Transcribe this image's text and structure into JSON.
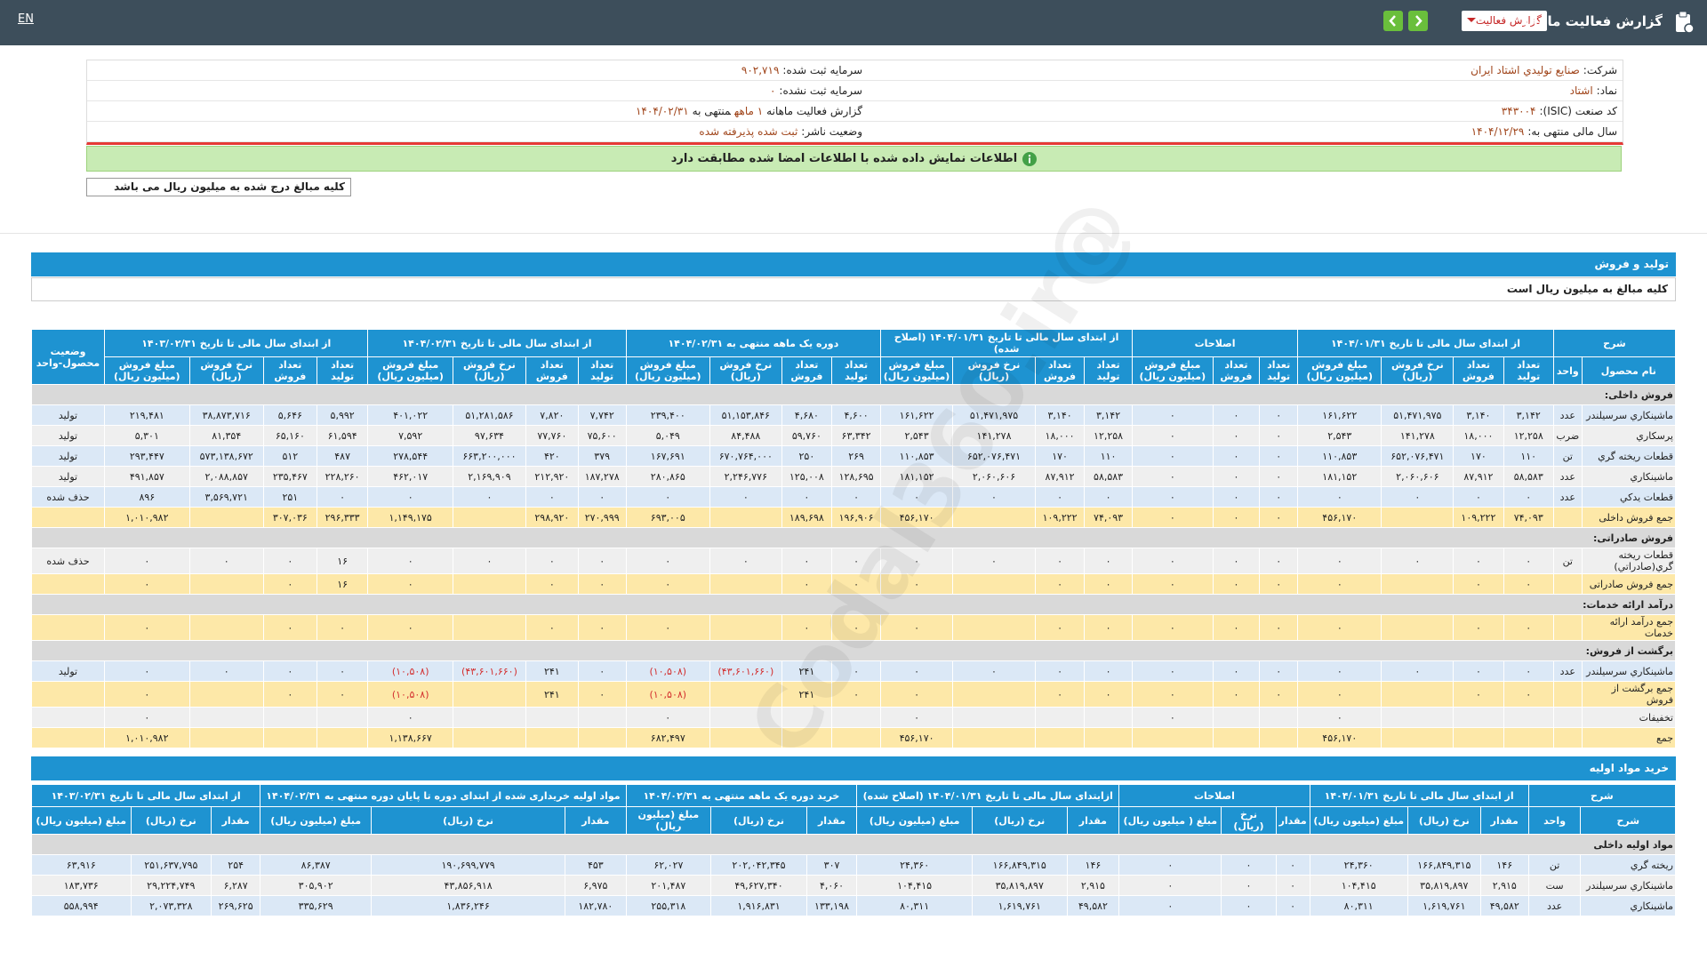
{
  "topbar": {
    "lang": "EN",
    "title": "گزارش فعالیت ماهانه",
    "report_type": "گزارش فعالیت"
  },
  "info": {
    "right": [
      {
        "label": "شرکت:",
        "value": "صنايع توليدي اشتاد ايران"
      },
      {
        "label": "نماد:",
        "value": "اشتاد"
      },
      {
        "label": "کد صنعت (ISIC):",
        "value": "۳۴۳۰۰۴"
      },
      {
        "label": "سال مالی منتهی به:",
        "value": "۱۴۰۴/۱۲/۲۹"
      }
    ],
    "left": [
      {
        "label": "سرمایه ثبت شده:",
        "value": "۹۰۲,۷۱۹"
      },
      {
        "label": "سرمایه ثبت نشده:",
        "value": "۰"
      },
      {
        "label": "گزارش فعالیت ماهانه",
        "value": "۱ ماهه",
        "suffix": "منتهی به",
        "date": "۱۴۰۴/۰۲/۳۱"
      },
      {
        "label": "وضعیت ناشر:",
        "value": "ثبت شده پذیرفته شده"
      }
    ]
  },
  "notice": "اطلاعات نمایش داده شده با اطلاعات امضا شده مطابقت دارد",
  "unit_note": "کلیه مبالغ درج شده به میلیون ریال می باشد",
  "watermark": "@Codal360.ir",
  "sales": {
    "title": "تولید و فروش",
    "note": "کلیه مبالغ به میلیون ریال است",
    "groups": [
      {
        "label": "شرح",
        "columns": [
          "نام محصول",
          "واحد"
        ]
      },
      {
        "label": "از ابتدای سال مالی تا تاریخ ۱۴۰۴/۰۱/۳۱",
        "columns": [
          "تعداد تولید",
          "تعداد فروش",
          "نرخ فروش (ریال)",
          "مبلغ فروش (میلیون ریال)"
        ]
      },
      {
        "label": "اصلاحات",
        "columns": [
          "تعداد تولید",
          "تعداد فروش",
          "مبلغ فروش (میلیون ریال)"
        ]
      },
      {
        "label": "از ابتدای سال مالی تا تاریخ ۱۴۰۴/۰۱/۳۱ (اصلاح شده)",
        "columns": [
          "تعداد تولید",
          "تعداد فروش",
          "نرخ فروش (ریال)",
          "مبلغ فروش (میلیون ریال)"
        ]
      },
      {
        "label": "دوره یک ماهه منتهی به ۱۴۰۴/۰۲/۳۱",
        "columns": [
          "تعداد تولید",
          "تعداد فروش",
          "نرخ فروش (ریال)",
          "مبلغ فروش (میلیون ریال)"
        ]
      },
      {
        "label": "از ابتدای سال مالی تا تاریخ ۱۴۰۴/۰۲/۳۱",
        "columns": [
          "تعداد تولید",
          "تعداد فروش",
          "نرخ فروش (ریال)",
          "مبلغ فروش (میلیون ریال)"
        ]
      },
      {
        "label": "از ابتدای سال مالی تا تاریخ ۱۴۰۳/۰۲/۳۱",
        "columns": [
          "تعداد تولید",
          "تعداد فروش",
          "نرخ فروش (ریال)",
          "مبلغ فروش (میلیون ریال)"
        ]
      },
      {
        "label": "وضعیت محصول-واحد",
        "columns": []
      }
    ],
    "rows": [
      {
        "section": "فروش داخلی:"
      },
      {
        "cells": [
          "ماشينكاري سرسيلندر",
          "عدد",
          "۳,۱۴۲",
          "۳,۱۴۰",
          "۵۱,۴۷۱,۹۷۵",
          "۱۶۱,۶۲۲",
          "۰",
          "۰",
          "۰",
          "۳,۱۴۲",
          "۳,۱۴۰",
          "۵۱,۴۷۱,۹۷۵",
          "۱۶۱,۶۲۲",
          "۴,۶۰۰",
          "۴,۶۸۰",
          "۵۱,۱۵۳,۸۴۶",
          "۲۳۹,۴۰۰",
          "۷,۷۴۲",
          "۷,۸۲۰",
          "۵۱,۲۸۱,۵۸۶",
          "۴۰۱,۰۲۲",
          "۵,۹۹۲",
          "۵,۶۴۶",
          "۳۸,۸۷۳,۷۱۶",
          "۲۱۹,۴۸۱",
          "توليد"
        ]
      },
      {
        "cells": [
          "پرسكاري",
          "ضرب",
          "۱۲,۲۵۸",
          "۱۸,۰۰۰",
          "۱۴۱,۲۷۸",
          "۲,۵۴۳",
          "۰",
          "۰",
          "۰",
          "۱۲,۲۵۸",
          "۱۸,۰۰۰",
          "۱۴۱,۲۷۸",
          "۲,۵۴۳",
          "۶۳,۳۴۲",
          "۵۹,۷۶۰",
          "۸۴,۴۸۸",
          "۵,۰۴۹",
          "۷۵,۶۰۰",
          "۷۷,۷۶۰",
          "۹۷,۶۳۴",
          "۷,۵۹۲",
          "۶۱,۵۹۴",
          "۶۵,۱۶۰",
          "۸۱,۳۵۴",
          "۵,۳۰۱",
          "توليد"
        ]
      },
      {
        "cells": [
          "قطعات ريخته گري",
          "تن",
          "۱۱۰",
          "۱۷۰",
          "۶۵۲,۰۷۶,۴۷۱",
          "۱۱۰,۸۵۳",
          "۰",
          "۰",
          "۰",
          "۱۱۰",
          "۱۷۰",
          "۶۵۲,۰۷۶,۴۷۱",
          "۱۱۰,۸۵۳",
          "۲۶۹",
          "۲۵۰",
          "۶۷۰,۷۶۴,۰۰۰",
          "۱۶۷,۶۹۱",
          "۳۷۹",
          "۴۲۰",
          "۶۶۳,۲۰۰,۰۰۰",
          "۲۷۸,۵۴۴",
          "۴۸۷",
          "۵۱۲",
          "۵۷۳,۱۳۸,۶۷۲",
          "۲۹۳,۴۴۷",
          "توليد"
        ]
      },
      {
        "cells": [
          "ماشينكاري",
          "عدد",
          "۵۸,۵۸۳",
          "۸۷,۹۱۲",
          "۲,۰۶۰,۶۰۶",
          "۱۸۱,۱۵۲",
          "۰",
          "۰",
          "۰",
          "۵۸,۵۸۳",
          "۸۷,۹۱۲",
          "۲,۰۶۰,۶۰۶",
          "۱۸۱,۱۵۲",
          "۱۲۸,۶۹۵",
          "۱۲۵,۰۰۸",
          "۲,۲۴۶,۷۷۶",
          "۲۸۰,۸۶۵",
          "۱۸۷,۲۷۸",
          "۲۱۲,۹۲۰",
          "۲,۱۶۹,۹۰۹",
          "۴۶۲,۰۱۷",
          "۲۲۸,۲۶۰",
          "۲۳۵,۴۶۷",
          "۲,۰۸۸,۸۵۷",
          "۴۹۱,۸۵۷",
          "توليد"
        ]
      },
      {
        "cells": [
          "قطعات يدكي",
          "عدد",
          "۰",
          "۰",
          "۰",
          "۰",
          "۰",
          "۰",
          "۰",
          "۰",
          "۰",
          "۰",
          "۰",
          "۰",
          "۰",
          "۰",
          "۰",
          "۰",
          "۰",
          "۰",
          "۰",
          "۰",
          "۲۵۱",
          "۳,۵۶۹,۷۲۱",
          "۸۹۶",
          "حذف شده"
        ]
      },
      {
        "cells": [
          "جمع فروش داخلی",
          null,
          "۷۴,۰۹۳",
          "۱۰۹,۲۲۲",
          null,
          "۴۵۶,۱۷۰",
          "۰",
          "۰",
          "۰",
          "۷۴,۰۹۳",
          "۱۰۹,۲۲۲",
          null,
          "۴۵۶,۱۷۰",
          "۱۹۶,۹۰۶",
          "۱۸۹,۶۹۸",
          null,
          "۶۹۳,۰۰۵",
          "۲۷۰,۹۹۹",
          "۲۹۸,۹۲۰",
          null,
          "۱,۱۴۹,۱۷۵",
          "۲۹۶,۳۳۳",
          "۳۰۷,۰۳۶",
          null,
          "۱,۰۱۰,۹۸۲",
          null
        ]
      },
      {
        "section": "فروش صادراتی:"
      },
      {
        "cells": [
          "قطعات ريخته گري(صادراتي)",
          "تن",
          "۰",
          "۰",
          "۰",
          "۰",
          "۰",
          "۰",
          "۰",
          "۰",
          "۰",
          "۰",
          "۰",
          "۰",
          "۰",
          "۰",
          "۰",
          "۰",
          "۰",
          "۰",
          "۰",
          "۱۶",
          "۰",
          "۰",
          "۰",
          "حذف شده"
        ]
      },
      {
        "cells": [
          "جمع فروش صادراتی",
          null,
          "۰",
          "۰",
          null,
          "۰",
          "۰",
          "۰",
          "۰",
          "۰",
          "۰",
          null,
          "۰",
          "۰",
          "۰",
          null,
          "۰",
          "۰",
          "۰",
          null,
          "۰",
          "۱۶",
          "۰",
          null,
          "۰",
          null
        ]
      },
      {
        "section": "درآمد ارائه خدمات:"
      },
      {
        "cells": [
          "جمع درآمد ارائه خدمات",
          null,
          "۰",
          "۰",
          null,
          "۰",
          "۰",
          "۰",
          "۰",
          "۰",
          "۰",
          null,
          "۰",
          "۰",
          "۰",
          null,
          "۰",
          "۰",
          "۰",
          null,
          "۰",
          "۰",
          "۰",
          null,
          "۰",
          null
        ]
      },
      {
        "section": "برگشت از فروش:"
      },
      {
        "cells": [
          "ماشينكاري سرسيلندر",
          "عدد",
          "۰",
          "۰",
          "۰",
          "۰",
          "۰",
          "۰",
          "۰",
          "۰",
          "۰",
          "۰",
          "۰",
          "۰",
          "۲۴۱",
          "(۴۳,۶۰۱,۶۶۰)",
          "(۱۰,۵۰۸)",
          "۰",
          "۲۴۱",
          "(۴۳,۶۰۱,۶۶۰)",
          "(۱۰,۵۰۸)",
          "۰",
          "۰",
          "۰",
          "۰",
          "توليد"
        ]
      },
      {
        "cells": [
          "جمع برگشت از فروش",
          null,
          "۰",
          "۰",
          null,
          "۰",
          "۰",
          "۰",
          "۰",
          "۰",
          "۰",
          null,
          "۰",
          "۰",
          "۲۴۱",
          null,
          "(۱۰,۵۰۸)",
          "۰",
          "۲۴۱",
          null,
          "(۱۰,۵۰۸)",
          "۰",
          "۰",
          null,
          "۰",
          null
        ]
      },
      {
        "cells": [
          "تخفیفات",
          null,
          null,
          null,
          null,
          "۰",
          null,
          null,
          "۰",
          null,
          null,
          null,
          "۰",
          null,
          null,
          null,
          "۰",
          null,
          null,
          null,
          "۰",
          null,
          null,
          null,
          "۰",
          null
        ]
      },
      {
        "cells": [
          "جمع",
          null,
          null,
          null,
          null,
          "۴۵۶,۱۷۰",
          null,
          null,
          null,
          null,
          null,
          null,
          "۴۵۶,۱۷۰",
          null,
          null,
          null,
          "۶۸۲,۴۹۷",
          null,
          null,
          null,
          "۱,۱۳۸,۶۶۷",
          null,
          null,
          null,
          "۱,۰۱۰,۹۸۲",
          null
        ]
      }
    ]
  },
  "materials": {
    "title": "خرید مواد اولیه",
    "groups": [
      {
        "label": "شرح",
        "columns": [
          "شرح",
          "واحد"
        ]
      },
      {
        "label": "از ابتدای سال مالی تا تاریخ ۱۴۰۴/۰۱/۳۱",
        "columns": [
          "مقدار",
          "نرخ (ریال)",
          "مبلغ (میلیون ریال)"
        ]
      },
      {
        "label": "اصلاحات",
        "columns": [
          "مقدار",
          "نرخ (ریال)",
          "مبلغ ( میلیون ریال)"
        ]
      },
      {
        "label": "ازابتدای سال مالی تا تاریخ ۱۴۰۴/۰۱/۳۱ (اصلاح شده)",
        "columns": [
          "مقدار",
          "نرخ (ریال)",
          "مبلغ (میلیون ریال)"
        ]
      },
      {
        "label": "خرید دوره یک ماهه منتهی به ۱۴۰۴/۰۲/۳۱",
        "columns": [
          "مقدار",
          "نرخ (ریال)",
          "مبلغ (میلیون ریال)"
        ]
      },
      {
        "label": "مواد اولیه خریداری شده از ابتدای دوره تا پایان دوره منتهی به ۱۴۰۴/۰۲/۳۱",
        "columns": [
          "مقدار",
          "نرخ (ریال)",
          "مبلغ (میلیون ریال)"
        ]
      },
      {
        "label": "از ابتدای سال مالی تا تاریخ ۱۴۰۳/۰۲/۳۱",
        "columns": [
          "مقدار",
          "نرخ (ریال)",
          "مبلغ (میلیون ریال)"
        ]
      }
    ],
    "rows": [
      {
        "section": "مواد اولیه داخلی"
      },
      {
        "cells": [
          "ريخته گري",
          "تن",
          "۱۴۶",
          "۱۶۶,۸۴۹,۳۱۵",
          "۲۴,۳۶۰",
          "۰",
          "۰",
          "۰",
          "۱۴۶",
          "۱۶۶,۸۴۹,۳۱۵",
          "۲۴,۳۶۰",
          "۳۰۷",
          "۲۰۲,۰۴۲,۳۴۵",
          "۶۲,۰۲۷",
          "۴۵۳",
          "۱۹۰,۶۹۹,۷۷۹",
          "۸۶,۳۸۷",
          "۲۵۴",
          "۲۵۱,۶۳۷,۷۹۵",
          "۶۳,۹۱۶"
        ]
      },
      {
        "cells": [
          "ماشينكاري سرسيلندر",
          "ست",
          "۲,۹۱۵",
          "۳۵,۸۱۹,۸۹۷",
          "۱۰۴,۴۱۵",
          "۰",
          "۰",
          "۰",
          "۲,۹۱۵",
          "۳۵,۸۱۹,۸۹۷",
          "۱۰۴,۴۱۵",
          "۴,۰۶۰",
          "۴۹,۶۲۷,۳۴۰",
          "۲۰۱,۴۸۷",
          "۶,۹۷۵",
          "۴۳,۸۵۶,۹۱۸",
          "۳۰۵,۹۰۲",
          "۶,۲۸۷",
          "۲۹,۲۲۴,۷۴۹",
          "۱۸۳,۷۳۶"
        ]
      },
      {
        "cells": [
          "ماشينكاري",
          "عدد",
          "۴۹,۵۸۲",
          "۱,۶۱۹,۷۶۱",
          "۸۰,۳۱۱",
          "۰",
          "۰",
          "۰",
          "۴۹,۵۸۲",
          "۱,۶۱۹,۷۶۱",
          "۸۰,۳۱۱",
          "۱۳۳,۱۹۸",
          "۱,۹۱۶,۸۳۱",
          "۲۵۵,۳۱۸",
          "۱۸۲,۷۸۰",
          "۱,۸۳۶,۲۴۶",
          "۳۳۵,۶۲۹",
          "۲۶۹,۶۲۵",
          "۲,۰۷۳,۳۲۸",
          "۵۵۸,۹۹۴"
        ]
      }
    ]
  }
}
